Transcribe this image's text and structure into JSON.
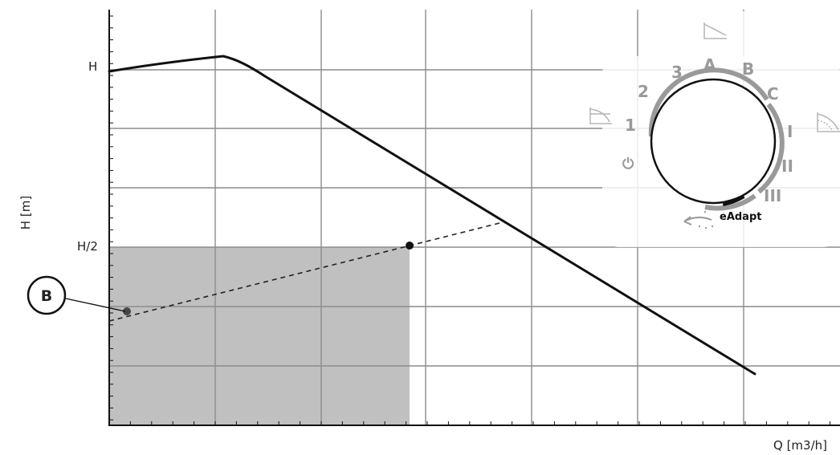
{
  "axes": {
    "y_title": "H [m]",
    "x_title": "Q [m3/h]",
    "y_tick_top": "H",
    "y_tick_half": "H/2"
  },
  "callout": {
    "label": "B"
  },
  "dial": {
    "positions": [
      "1",
      "2",
      "3",
      "A",
      "B",
      "C",
      "I",
      "II",
      "III"
    ],
    "power_symbol": "⏻",
    "eadapt_label": "eAdapt",
    "icons": [
      "proportional-pressure-icon",
      "constant-pressure-icon",
      "constant-curve-icon"
    ]
  },
  "colors": {
    "curve": "#111111",
    "shaded_region": "#c0c0c0",
    "grid": "#8c8c8c",
    "dial_marks": "#9a9a9a",
    "eadapt_mark": "#111111"
  }
}
